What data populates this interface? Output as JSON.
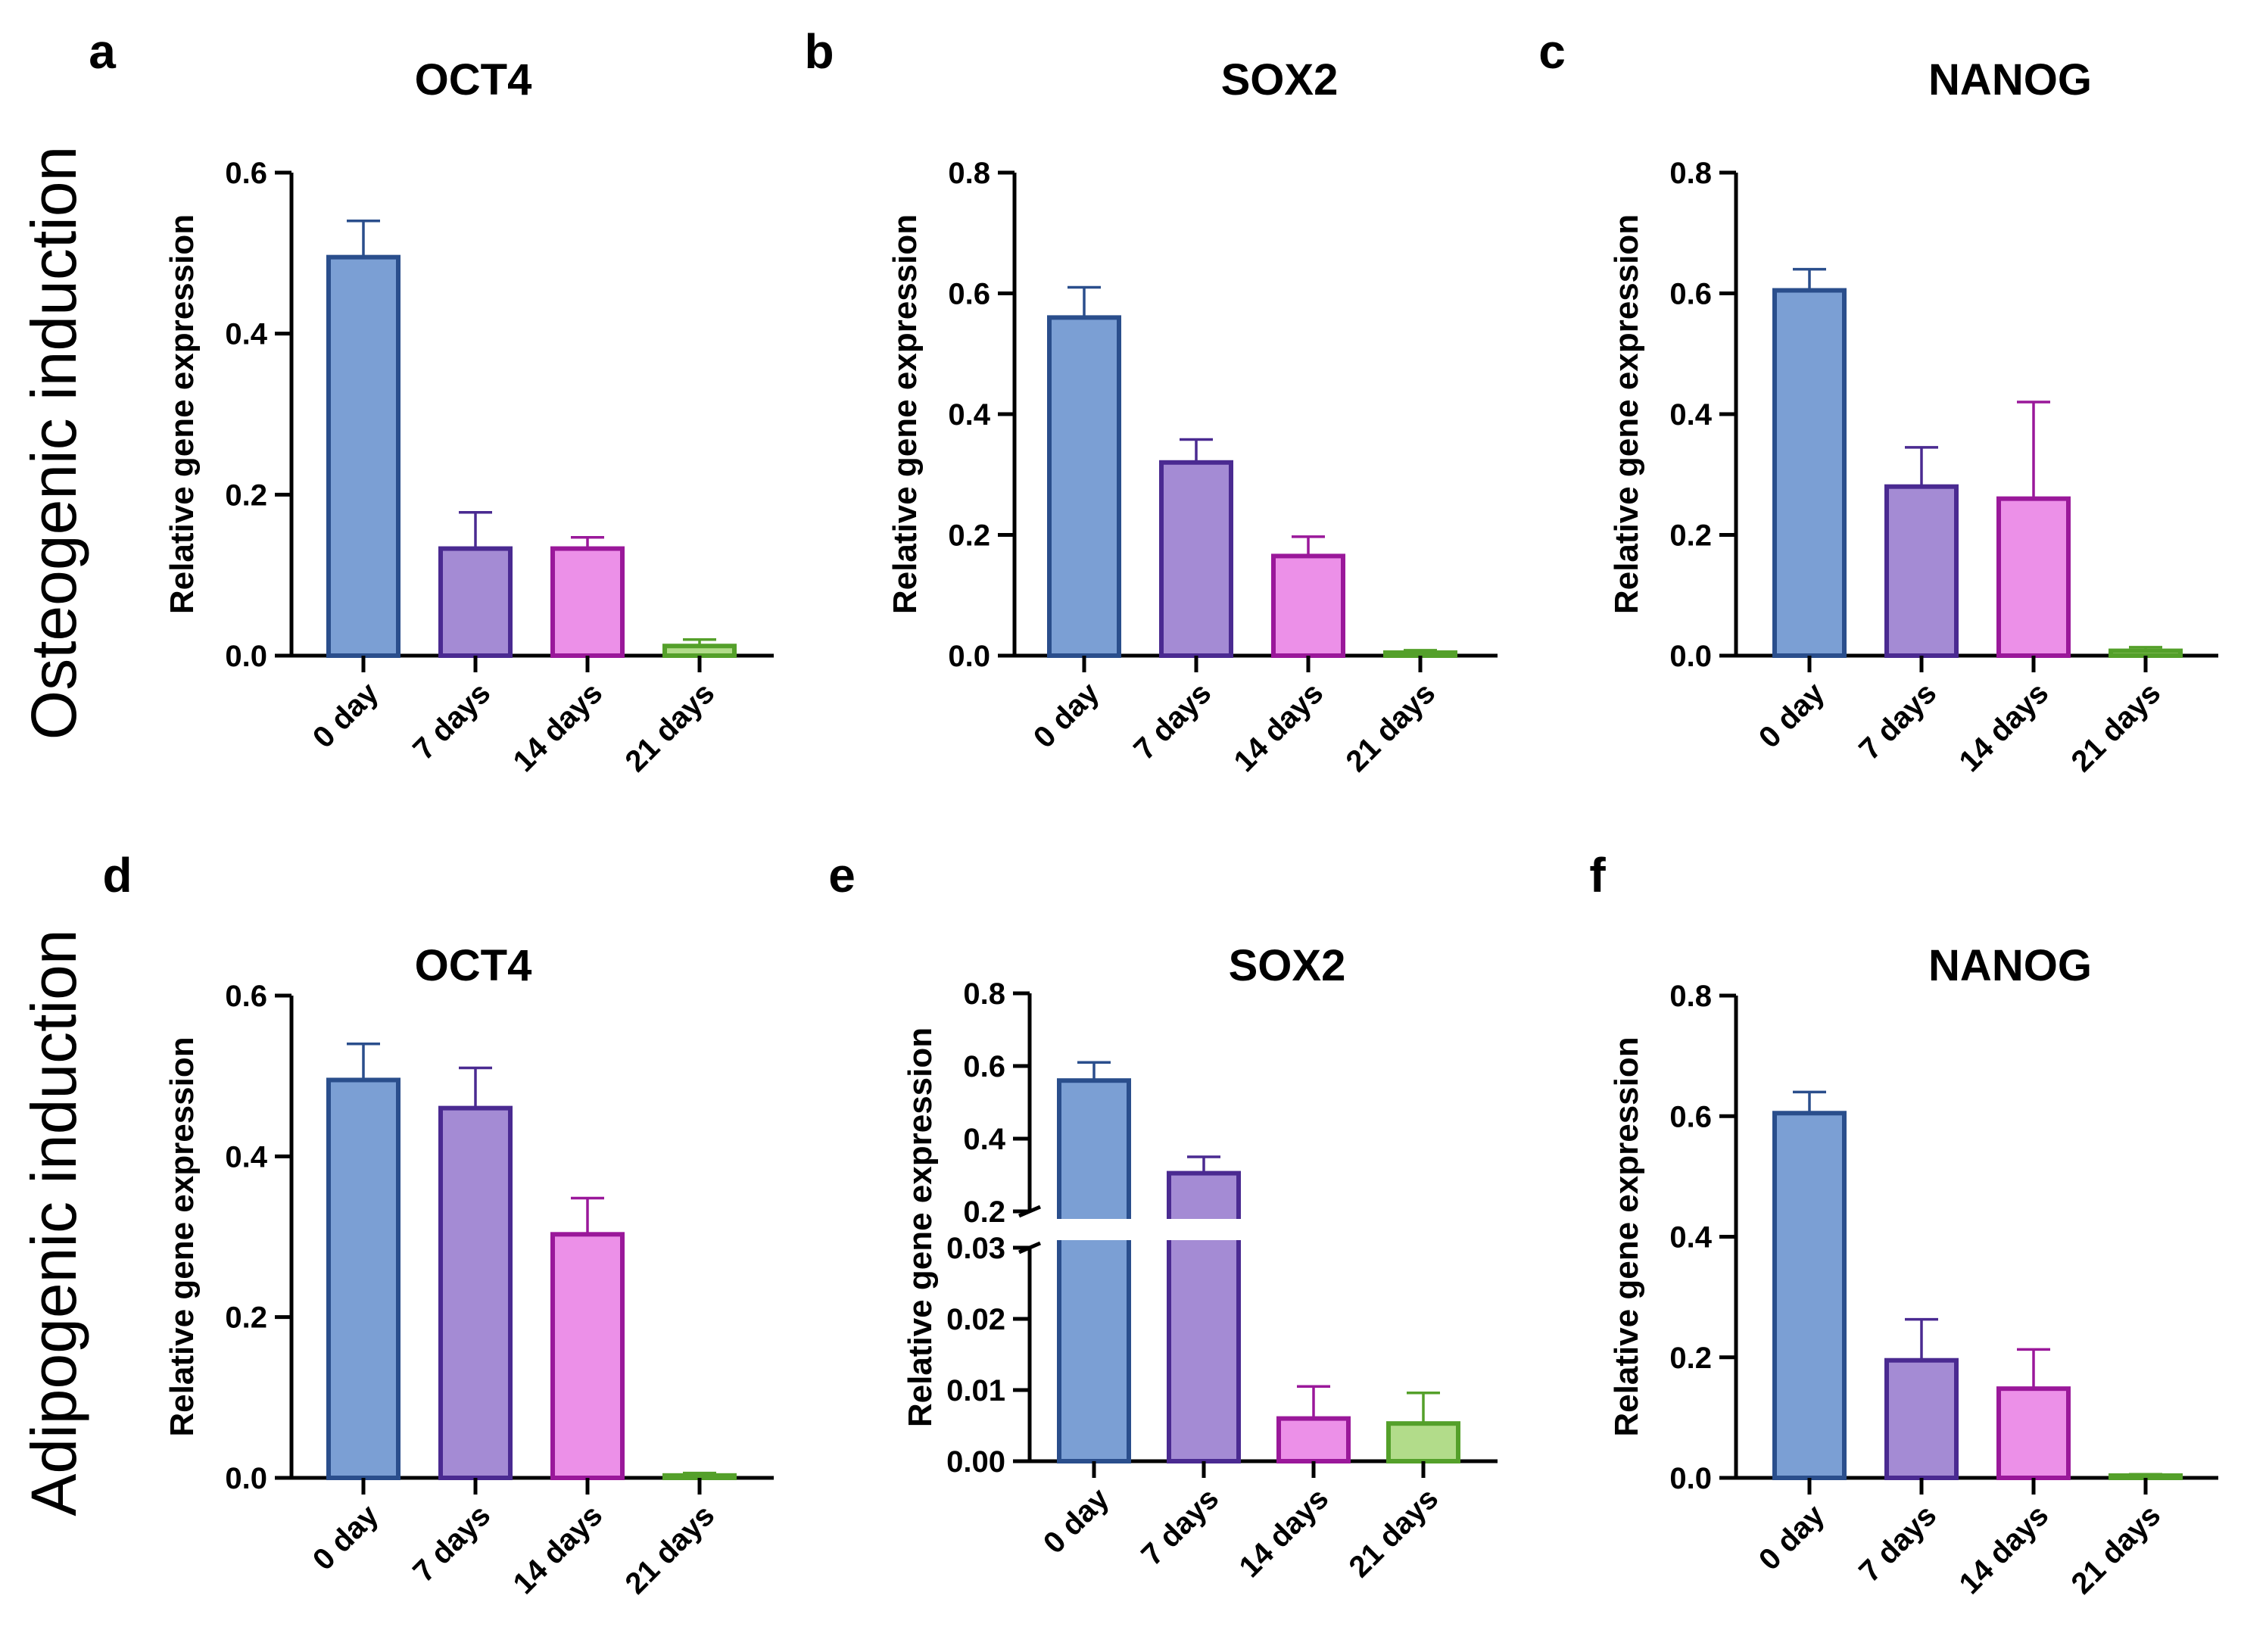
{
  "row_labels": {
    "top": "Osteogenic induction",
    "bottom": "Adipogenic induction"
  },
  "colors": {
    "0 day": {
      "fill": "#7b9fd4",
      "stroke": "#2a4e8c"
    },
    "7 days": {
      "fill": "#a48bd4",
      "stroke": "#4a2a91"
    },
    "14 days": {
      "fill": "#ec90e8",
      "stroke": "#9a189a"
    },
    "21 days": {
      "fill": "#b2dc8a",
      "stroke": "#54a02a"
    }
  },
  "chart_data": [
    {
      "type": "bar",
      "panel": "a",
      "title": "OCT4",
      "ylabel": "Relative gene expression",
      "categories": [
        "0 day",
        "7 days",
        "14 days",
        "21 days"
      ],
      "values": [
        0.495,
        0.133,
        0.133,
        0.012
      ],
      "errors": [
        0.045,
        0.045,
        0.014,
        0.008
      ],
      "ylim": [
        0,
        0.6
      ],
      "yticks": [
        "0.0",
        "0.2",
        "0.4",
        "0.6"
      ]
    },
    {
      "type": "bar",
      "panel": "b",
      "title": "SOX2",
      "ylabel": "Relative gene expression",
      "categories": [
        "0 day",
        "7 days",
        "14 days",
        "21 days"
      ],
      "values": [
        0.56,
        0.32,
        0.165,
        0.005
      ],
      "errors": [
        0.05,
        0.038,
        0.032,
        0.004
      ],
      "ylim": [
        0,
        0.8
      ],
      "yticks": [
        "0.0",
        "0.2",
        "0.4",
        "0.6",
        "0.8"
      ]
    },
    {
      "type": "bar",
      "panel": "c",
      "title": "NANOG",
      "ylabel": "Relative gene expression",
      "categories": [
        "0 day",
        "7 days",
        "14 days",
        "21 days"
      ],
      "values": [
        0.605,
        0.28,
        0.26,
        0.008
      ],
      "errors": [
        0.035,
        0.065,
        0.16,
        0.006
      ],
      "ylim": [
        0,
        0.8
      ],
      "yticks": [
        "0.0",
        "0.2",
        "0.4",
        "0.6",
        "0.8"
      ]
    },
    {
      "type": "bar",
      "panel": "d",
      "title": "OCT4",
      "ylabel": "Relative gene expression",
      "categories": [
        "0 day",
        "7 days",
        "14 days",
        "21 days"
      ],
      "values": [
        0.495,
        0.46,
        0.303,
        0.003
      ],
      "errors": [
        0.045,
        0.05,
        0.045,
        0.003
      ],
      "ylim": [
        0,
        0.6
      ],
      "yticks": [
        "0.0",
        "0.2",
        "0.4",
        "0.6"
      ]
    },
    {
      "type": "bar",
      "panel": "e",
      "title": "SOX2",
      "ylabel": "Relative gene expression",
      "categories": [
        "0 day",
        "7 days",
        "14 days",
        "21 days"
      ],
      "values": [
        0.56,
        0.305,
        0.006,
        0.0053
      ],
      "errors": [
        0.05,
        0.045,
        0.0045,
        0.0043
      ],
      "ylim": [
        0,
        0.8
      ],
      "axis_break": {
        "lower_range": [
          0,
          0.03
        ],
        "upper_range": [
          0.2,
          0.8
        ]
      },
      "yticks": [
        "0.00",
        "0.01",
        "0.02",
        "0.03",
        "0.2",
        "0.4",
        "0.6",
        "0.8"
      ]
    },
    {
      "type": "bar",
      "panel": "f",
      "title": "NANOG",
      "ylabel": "Relative gene expression",
      "categories": [
        "0 day",
        "7 days",
        "14 days",
        "21 days"
      ],
      "values": [
        0.605,
        0.195,
        0.148,
        0.003
      ],
      "errors": [
        0.035,
        0.068,
        0.065,
        0.003
      ],
      "ylim": [
        0,
        0.8
      ],
      "yticks": [
        "0.0",
        "0.2",
        "0.4",
        "0.6",
        "0.8"
      ]
    }
  ]
}
